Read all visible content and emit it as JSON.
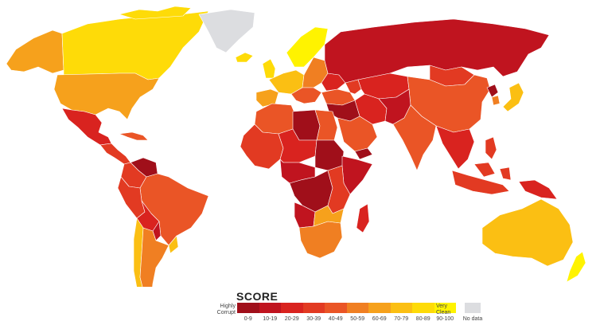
{
  "legend": {
    "title": "SCORE",
    "low_label": "Highly Corrupt",
    "high_label": "Very Clean",
    "no_data_label": "No data",
    "no_data_color": "#dcdde0",
    "bins": [
      {
        "label": "0-9",
        "color": "#a00f1a"
      },
      {
        "label": "10-19",
        "color": "#c0141f"
      },
      {
        "label": "20-29",
        "color": "#d9231f"
      },
      {
        "label": "30-39",
        "color": "#e23a22"
      },
      {
        "label": "40-49",
        "color": "#ea5526"
      },
      {
        "label": "50-59",
        "color": "#f07f22"
      },
      {
        "label": "60-69",
        "color": "#f6a11c"
      },
      {
        "label": "70-79",
        "color": "#fbbf13"
      },
      {
        "label": "80-89",
        "color": "#fedb08"
      },
      {
        "label": "90-100",
        "color": "#fff300"
      }
    ]
  },
  "regions": [
    {
      "name": "canada",
      "color": "#fedb08"
    },
    {
      "name": "alaska",
      "color": "#f6a11c"
    },
    {
      "name": "greenland",
      "color": "#dcdde0"
    },
    {
      "name": "usa",
      "color": "#f6a11c"
    },
    {
      "name": "mexico",
      "color": "#d9231f"
    },
    {
      "name": "central-america",
      "color": "#e23a22"
    },
    {
      "name": "caribbean",
      "color": "#ea5526"
    },
    {
      "name": "venezuela",
      "color": "#a00f1a"
    },
    {
      "name": "colombia",
      "color": "#e23a22"
    },
    {
      "name": "brazil",
      "color": "#ea5526"
    },
    {
      "name": "peru",
      "color": "#e23a22"
    },
    {
      "name": "bolivia",
      "color": "#d9231f"
    },
    {
      "name": "paraguay",
      "color": "#c0141f"
    },
    {
      "name": "argentina",
      "color": "#f07f22"
    },
    {
      "name": "chile",
      "color": "#fbbf13"
    },
    {
      "name": "uruguay",
      "color": "#fbbf13"
    },
    {
      "name": "iceland",
      "color": "#fedb08"
    },
    {
      "name": "scandinavia",
      "color": "#fff300"
    },
    {
      "name": "uk",
      "color": "#fedb08"
    },
    {
      "name": "western-europe",
      "color": "#fbbf13"
    },
    {
      "name": "iberia",
      "color": "#f6a11c"
    },
    {
      "name": "eastern-europe",
      "color": "#f07f22"
    },
    {
      "name": "balkans",
      "color": "#ea5526"
    },
    {
      "name": "russia",
      "color": "#c0141f"
    },
    {
      "name": "ukraine",
      "color": "#d9231f"
    },
    {
      "name": "turkey",
      "color": "#ea5526"
    },
    {
      "name": "caucasus",
      "color": "#e23a22"
    },
    {
      "name": "central-asia",
      "color": "#d9231f"
    },
    {
      "name": "mongolia",
      "color": "#e23a22"
    },
    {
      "name": "china",
      "color": "#ea5526"
    },
    {
      "name": "north-korea",
      "color": "#a00f1a"
    },
    {
      "name": "south-korea",
      "color": "#f07f22"
    },
    {
      "name": "japan",
      "color": "#fbbf13"
    },
    {
      "name": "iran",
      "color": "#d9231f"
    },
    {
      "name": "iraq-syria",
      "color": "#a00f1a"
    },
    {
      "name": "arabia",
      "color": "#ea5526"
    },
    {
      "name": "yemen",
      "color": "#a00f1a"
    },
    {
      "name": "afghanistan-pakistan",
      "color": "#c0141f"
    },
    {
      "name": "india",
      "color": "#ea5526"
    },
    {
      "name": "southeast-asia",
      "color": "#d9231f"
    },
    {
      "name": "indonesia",
      "color": "#e23a22"
    },
    {
      "name": "philippines",
      "color": "#e23a22"
    },
    {
      "name": "papua-new-guinea",
      "color": "#d9231f"
    },
    {
      "name": "north-africa",
      "color": "#ea5526"
    },
    {
      "name": "libya",
      "color": "#a00f1a"
    },
    {
      "name": "egypt",
      "color": "#ea5526"
    },
    {
      "name": "west-africa",
      "color": "#e23a22"
    },
    {
      "name": "sahel",
      "color": "#d9231f"
    },
    {
      "name": "sudan",
      "color": "#a00f1a"
    },
    {
      "name": "horn-of-africa",
      "color": "#c0141f"
    },
    {
      "name": "central-africa",
      "color": "#c0141f"
    },
    {
      "name": "congo-drc",
      "color": "#a00f1a"
    },
    {
      "name": "east-africa",
      "color": "#e23a22"
    },
    {
      "name": "angola",
      "color": "#c0141f"
    },
    {
      "name": "southern-africa",
      "color": "#f07f22"
    },
    {
      "name": "botswana",
      "color": "#f6a11c"
    },
    {
      "name": "madagascar",
      "color": "#d9231f"
    },
    {
      "name": "australia",
      "color": "#fbbf13"
    },
    {
      "name": "new-zealand",
      "color": "#fff300"
    }
  ]
}
